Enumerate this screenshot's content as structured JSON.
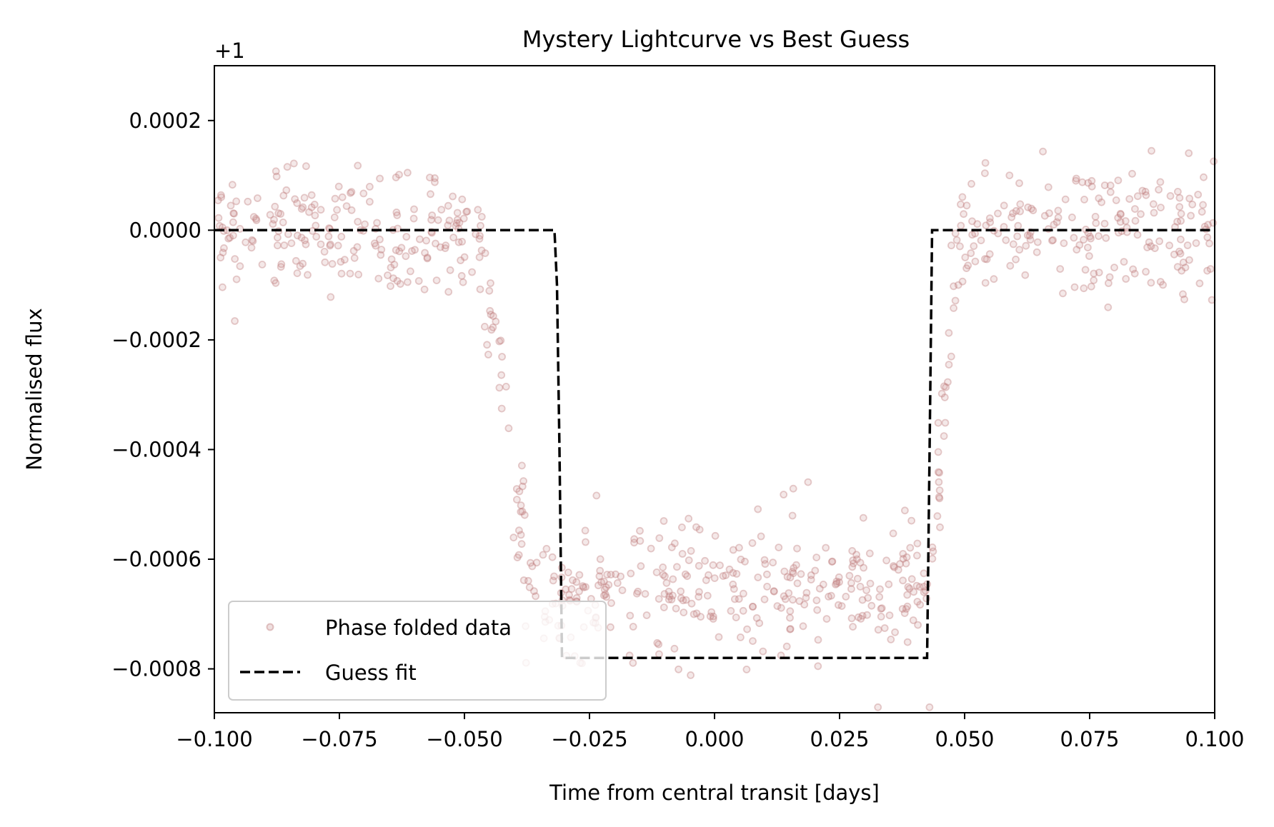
{
  "chart_data": {
    "type": "scatter",
    "title": "Mystery Lightcurve vs Best Guess",
    "xlabel": "Time from central transit [days]",
    "ylabel": "Normalised flux",
    "offset_label": "+1",
    "xlim": [
      -0.1,
      0.1
    ],
    "ylim": [
      -0.00088,
      0.0003
    ],
    "x_ticks": [
      -0.1,
      -0.075,
      -0.05,
      -0.025,
      0.0,
      0.025,
      0.05,
      0.075,
      0.1
    ],
    "x_tick_labels": [
      "−0.100",
      "−0.075",
      "−0.050",
      "−0.025",
      "0.000",
      "0.025",
      "0.050",
      "0.075",
      "0.100"
    ],
    "y_ticks": [
      0.0002,
      0.0,
      -0.0002,
      -0.0004,
      -0.0006,
      -0.0008
    ],
    "y_tick_labels": [
      "0.0002",
      "0.0000",
      "−0.0002",
      "−0.0004",
      "−0.0006",
      "−0.0008"
    ],
    "grid": false,
    "legend": {
      "position": "lower-left",
      "entries": [
        {
          "label": "Phase folded data",
          "style": "marker"
        },
        {
          "label": "Guess fit",
          "style": "dashed-line"
        }
      ]
    },
    "series": [
      {
        "name": "Phase folded data",
        "kind": "scatter",
        "color": "#c08080",
        "baseline": 0.0,
        "depth": -0.00065,
        "scatter_sigma": 6e-05,
        "ingress": [
          -0.047,
          -0.037
        ],
        "egress": [
          0.043,
          0.049
        ],
        "n_points": 800
      },
      {
        "name": "Guess fit",
        "kind": "line",
        "color": "#000000",
        "x": [
          -0.1,
          -0.032,
          -0.0315,
          -0.031,
          -0.0305,
          0.0425,
          0.043,
          0.0435,
          0.1
        ],
        "y": [
          0.0,
          0.0,
          -0.0001,
          -0.0004,
          -0.00078,
          -0.00078,
          -0.0004,
          0.0,
          0.0
        ]
      }
    ]
  }
}
